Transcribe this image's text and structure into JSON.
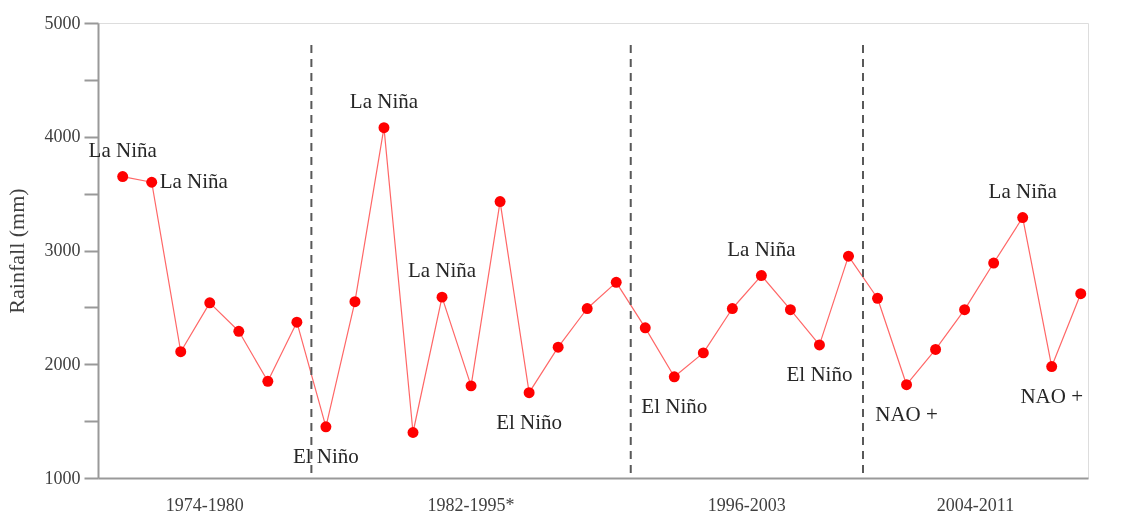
{
  "chart_data": {
    "type": "line",
    "ylabel": "Rainfall (mm)",
    "categories": [
      null,
      null,
      null,
      null,
      null,
      null,
      null,
      null,
      null,
      null,
      null,
      null,
      null,
      null,
      null,
      null,
      null,
      null,
      null,
      null,
      null,
      null,
      null,
      null,
      null,
      null,
      null,
      null,
      null,
      null,
      null,
      null,
      null,
      null
    ],
    "series": [
      {
        "color": "#ff0000",
        "values": [
          3650,
          3600,
          2110,
          2540,
          2290,
          1850,
          2370,
          1450,
          2550,
          4080,
          1400,
          2590,
          1810,
          3430,
          1750,
          2150,
          2490,
          2720,
          2320,
          1890,
          2100,
          2490,
          2780,
          2480,
          2170,
          2950,
          2580,
          1820,
          2130,
          2480,
          2890,
          3290,
          1980,
          2620
        ]
      }
    ],
    "ylim": [
      1000,
      5000
    ],
    "yticks": [
      1000,
      {
        "value": 1500,
        "label": null
      },
      2000,
      {
        "value": 2500,
        "label": null
      },
      3000,
      {
        "value": 3500,
        "label": null
      },
      4000,
      {
        "value": 4500,
        "label": null
      },
      5000
    ],
    "tick_labels": "y",
    "grid": false,
    "marker": "circle",
    "line_style": "solid",
    "annotations": [
      "1974-1980",
      "1982-1995*",
      "1996-2003",
      "2004-2011",
      "La Niña",
      {
        "text": "La Niña",
        "y": 3650
      },
      {
        "text": "El Niño",
        "y": 1450
      },
      {
        "text": "La Niña",
        "y": 4080
      },
      {
        "text": "La Niña",
        "y": 2590
      },
      {
        "text": "El Niño",
        "y": 1750
      },
      {
        "text": "El Niño",
        "y": 1890
      },
      {
        "text": "La Niña",
        "y": 2780
      },
      {
        "text": "El Niño",
        "y": 2170
      },
      {
        "text": "NAO +",
        "y": 1820
      },
      {
        "text": "La Niña",
        "y": 3290
      },
      {
        "text": "NAO +",
        "y": 1980
      }
    ]
  }
}
